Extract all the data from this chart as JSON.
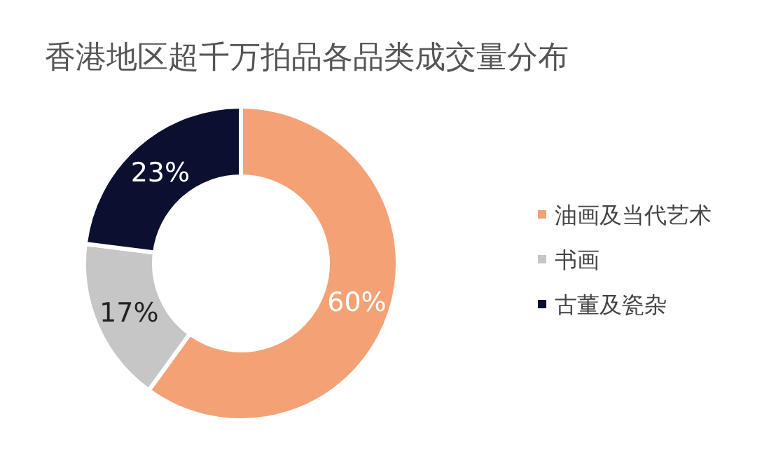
{
  "chart_data": {
    "type": "donut",
    "title": "香港地区超千万拍品各品类成交量分布",
    "categories": [
      "油画及当代艺术",
      "书画",
      "古董及瓷杂"
    ],
    "values": [
      60,
      17,
      23
    ],
    "colors": [
      "#f4a275",
      "#c6c6c6",
      "#0b1030"
    ],
    "value_labels": [
      "60%",
      "17%",
      "23%"
    ],
    "legend": "right"
  }
}
